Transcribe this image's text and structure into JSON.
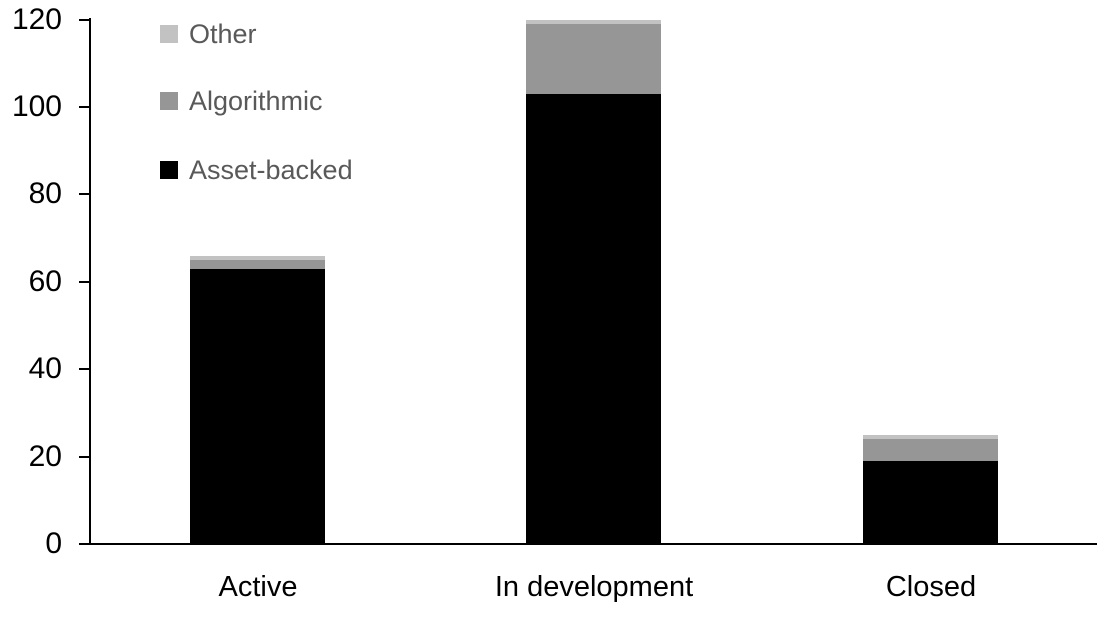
{
  "chart_data": {
    "type": "bar",
    "stacked": true,
    "title": "",
    "xlabel": "",
    "ylabel": "",
    "categories": [
      "Active",
      "In development",
      "Closed"
    ],
    "series": [
      {
        "name": "Asset-backed",
        "color": "#000000",
        "values": [
          63,
          103,
          19
        ]
      },
      {
        "name": "Algorithmic",
        "color": "#969696",
        "values": [
          2,
          16,
          5
        ]
      },
      {
        "name": "Other",
        "color": "#c2c2c2",
        "values": [
          1,
          1,
          1
        ]
      }
    ],
    "stack_totals": [
      66,
      120,
      25
    ],
    "ylim": [
      0,
      120
    ],
    "yticks": [
      0,
      20,
      40,
      60,
      80,
      100,
      120
    ],
    "grid": false,
    "legend": {
      "position": "top-left",
      "order": [
        "Other",
        "Algorithmic",
        "Asset-backed"
      ],
      "text_color": "#595959"
    },
    "axis_color": "#000000",
    "tick_label_color": "#000000",
    "background_color": "#ffffff"
  }
}
